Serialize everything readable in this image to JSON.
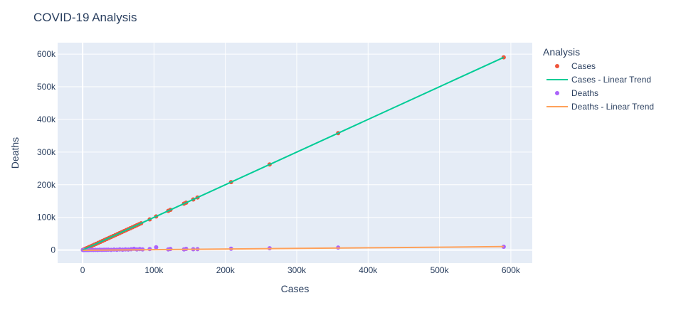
{
  "chart_data": {
    "type": "scatter",
    "title": "COVID-19 Analysis",
    "xlabel": "Cases",
    "ylabel": "Deaths",
    "xlim": [
      -35000,
      630000
    ],
    "ylim": [
      -40000,
      635000
    ],
    "x_ticks": [
      0,
      100000,
      200000,
      300000,
      400000,
      500000,
      600000
    ],
    "x_tick_labels": [
      "0",
      "100k",
      "200k",
      "300k",
      "400k",
      "500k",
      "600k"
    ],
    "y_ticks": [
      0,
      100000,
      200000,
      300000,
      400000,
      500000,
      600000
    ],
    "y_tick_labels": [
      "0",
      "100k",
      "200k",
      "300k",
      "400k",
      "500k",
      "600k"
    ],
    "grid": true,
    "legend_title": "Analysis",
    "legend_position": "right",
    "plot_bg": "#e5ecf6",
    "series": [
      {
        "name": "Cases",
        "mode": "markers",
        "color": "#ef553b",
        "x": [
          500,
          2000,
          4000,
          6000,
          8000,
          10000,
          13000,
          16000,
          19000,
          22000,
          25000,
          28000,
          31000,
          34000,
          37000,
          40000,
          43000,
          46000,
          49000,
          52000,
          55000,
          58000,
          61000,
          64000,
          67000,
          70000,
          73000,
          76000,
          79000,
          82000,
          94000,
          103000,
          120000,
          123000,
          142000,
          145000,
          155000,
          161000,
          208000,
          262000,
          358000,
          590000
        ],
        "y": [
          500,
          2000,
          4000,
          6000,
          8000,
          10000,
          13000,
          16000,
          19000,
          22000,
          25000,
          28000,
          31000,
          34000,
          37000,
          40000,
          43000,
          46000,
          49000,
          52000,
          55000,
          58000,
          61000,
          64000,
          67000,
          70000,
          73000,
          76000,
          79000,
          82000,
          94000,
          103000,
          120000,
          123000,
          142000,
          145000,
          155000,
          161000,
          208000,
          262000,
          358000,
          590000
        ]
      },
      {
        "name": "Cases - Linear Trend",
        "mode": "lines",
        "color": "#00cc96",
        "x": [
          0,
          590000
        ],
        "y": [
          0,
          590000
        ]
      },
      {
        "name": "Deaths",
        "mode": "markers",
        "color": "#ab63fa",
        "x": [
          500,
          1500,
          3000,
          5000,
          7000,
          9000,
          12000,
          15000,
          18000,
          21000,
          24000,
          27000,
          30000,
          33000,
          36000,
          40000,
          44000,
          48000,
          52000,
          56000,
          60000,
          64000,
          68000,
          72000,
          76000,
          80000,
          84000,
          94000,
          103000,
          120000,
          123000,
          142000,
          145000,
          155000,
          161000,
          208000,
          262000,
          358000,
          590000
        ],
        "y": [
          0,
          100,
          200,
          300,
          200,
          400,
          500,
          300,
          600,
          400,
          800,
          500,
          900,
          700,
          1200,
          600,
          1500,
          900,
          1800,
          1200,
          2000,
          1500,
          2500,
          3800,
          1800,
          3000,
          2000,
          3000,
          8500,
          2000,
          3200,
          2000,
          3500,
          2500,
          2800,
          4000,
          5500,
          7500,
          10000
        ]
      },
      {
        "name": "Deaths - Linear Trend",
        "mode": "lines",
        "color": "#ffa15a",
        "x": [
          0,
          590000
        ],
        "y": [
          -800,
          10500
        ]
      }
    ]
  }
}
